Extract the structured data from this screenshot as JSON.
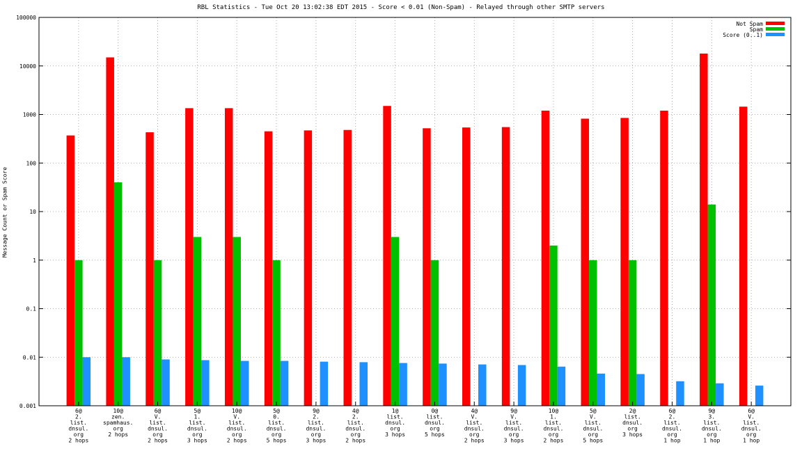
{
  "chart_data": {
    "type": "bar",
    "title": "RBL Statistics - Tue Oct 20 13:02:38 EDT 2015 - Score < 0.01 (Non-Spam) - Relayed through other SMTP servers",
    "ylabel": "Message Count or Spam Score",
    "xlabel": "",
    "yscale": "log",
    "ylim": [
      0.001,
      100000
    ],
    "grid": true,
    "legend_position": "top-right",
    "yticks": [
      "0.001",
      "0.01",
      "0.1",
      "1",
      "10",
      "100",
      "1000",
      "10000",
      "100000"
    ],
    "categories": [
      [
        "6@",
        "2.",
        "list.",
        "dnsul.",
        "org",
        "2 hops"
      ],
      [
        "10@",
        "zen.",
        "spamhaus.",
        "org",
        "2 hops"
      ],
      [
        "6@",
        "V.",
        "list.",
        "dnsul.",
        "org",
        "2 hops"
      ],
      [
        "5@",
        "1.",
        "list.",
        "dnsul.",
        "org",
        "3 hops"
      ],
      [
        "10@",
        "V.",
        "list.",
        "dnsul.",
        "org",
        "2 hops"
      ],
      [
        "5@",
        "0.",
        "list.",
        "dnsul.",
        "org",
        "5 hops"
      ],
      [
        "9@",
        "2.",
        "list.",
        "dnsul.",
        "org",
        "3 hops"
      ],
      [
        "4@",
        "2.",
        "list.",
        "dnsul.",
        "org",
        "2 hops"
      ],
      [
        "1@",
        "list.",
        "dnsul.",
        "org",
        "3 hops"
      ],
      [
        "0@",
        "list.",
        "dnsul.",
        "org",
        "5 hops"
      ],
      [
        "4@",
        "V.",
        "list.",
        "dnsul.",
        "org",
        "2 hops"
      ],
      [
        "9@",
        "V.",
        "list.",
        "dnsul.",
        "org",
        "3 hops"
      ],
      [
        "10@",
        "1.",
        "list.",
        "dnsul.",
        "org",
        "2 hops"
      ],
      [
        "5@",
        "V.",
        "list.",
        "dnsul.",
        "org",
        "5 hops"
      ],
      [
        "2@",
        "list.",
        "dnsul.",
        "org",
        "3 hops"
      ],
      [
        "6@",
        "2.",
        "list.",
        "dnsul.",
        "org",
        "1 hop"
      ],
      [
        "9@",
        "3.",
        "list.",
        "dnsul.",
        "org",
        "1 hop"
      ],
      [
        "6@",
        "V.",
        "list.",
        "dnsul.",
        "org",
        "1 hop"
      ]
    ],
    "series": [
      {
        "name": "Not Spam",
        "color": "#ff0000",
        "values": [
          370,
          15000,
          430,
          1350,
          1350,
          450,
          470,
          480,
          1500,
          520,
          540,
          550,
          1200,
          820,
          850,
          1200,
          18000,
          1450
        ]
      },
      {
        "name": "Spam",
        "color": "#00c000",
        "values": [
          1,
          40,
          1,
          3,
          3,
          1,
          null,
          null,
          3,
          1,
          null,
          null,
          2,
          1,
          1,
          null,
          14,
          null
        ]
      },
      {
        "name": "Score (0..1)",
        "color": "#1e90ff",
        "values": [
          0.01,
          0.01,
          0.009,
          0.0087,
          0.0084,
          0.0084,
          0.0081,
          0.0079,
          0.0076,
          0.0074,
          0.0071,
          0.0069,
          0.0064,
          0.0046,
          0.0045,
          0.0032,
          0.0029,
          0.0026
        ]
      }
    ]
  }
}
